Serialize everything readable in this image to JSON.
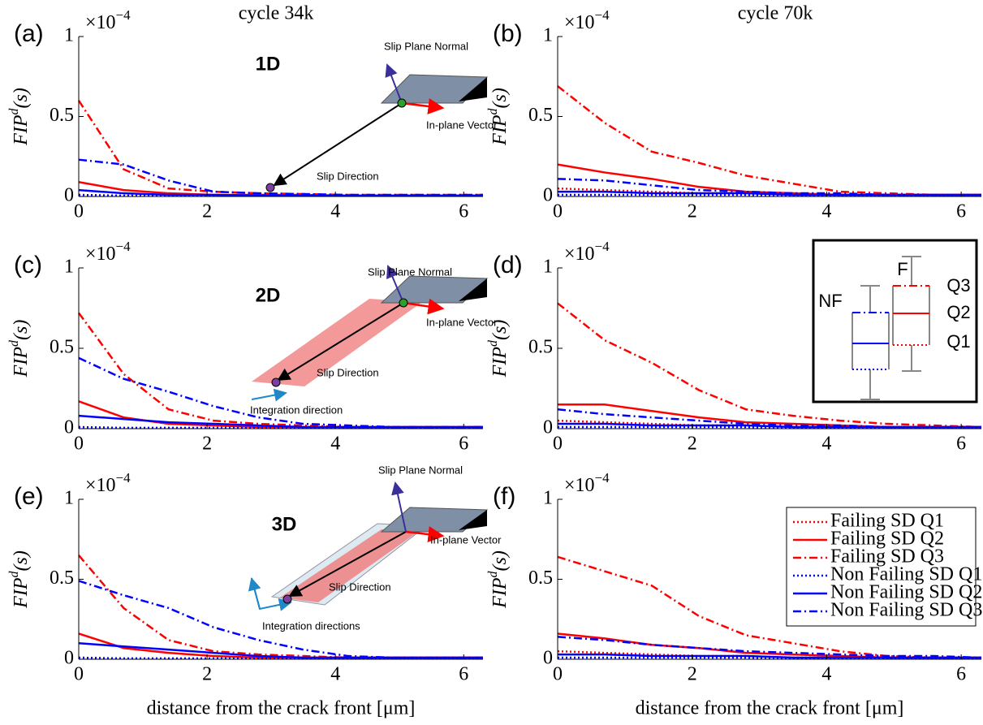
{
  "chart_data": [
    {
      "type": "line",
      "panel_label": "(a)",
      "title": "cycle 34k",
      "inset_title": "1D",
      "annotations": [
        "Slip Plane Normal",
        "In-plane Vector",
        "Slip Direction"
      ],
      "ylabel": [
        "FIP",
        "d",
        "(s)"
      ],
      "y_multiplier": [
        "×10",
        "−4"
      ],
      "x": [
        0,
        0.7,
        1.4,
        2.1,
        2.8,
        3.5,
        4.2,
        4.9,
        5.6,
        6.3
      ],
      "xlim": [
        0,
        6.3
      ],
      "xticks": [
        0,
        2,
        4,
        6
      ],
      "ylim": [
        0,
        1
      ],
      "yticks": [
        0,
        0.5,
        1
      ],
      "series": [
        {
          "color": "#ff0000",
          "dash": "dotted",
          "values": [
            0.01,
            0.005,
            0.005,
            0.005,
            0.005,
            0.005,
            0.005,
            0.005,
            0.005,
            0.005
          ]
        },
        {
          "color": "#ff0000",
          "dash": "solid",
          "values": [
            0.09,
            0.04,
            0.02,
            0.01,
            0.01,
            0.01,
            0.005,
            0.005,
            0.005,
            0.005
          ]
        },
        {
          "color": "#ff0000",
          "dash": "dashdot",
          "values": [
            0.6,
            0.17,
            0.05,
            0.03,
            0.02,
            0.015,
            0.01,
            0.01,
            0.01,
            0.01
          ]
        },
        {
          "color": "#0000ff",
          "dash": "dotted",
          "values": [
            0.01,
            0.005,
            0.005,
            0.005,
            0.005,
            0.005,
            0.005,
            0.005,
            0.005,
            0.005
          ]
        },
        {
          "color": "#0000ff",
          "dash": "solid",
          "values": [
            0.04,
            0.02,
            0.01,
            0.01,
            0.005,
            0.005,
            0.005,
            0.005,
            0.005,
            0.005
          ]
        },
        {
          "color": "#0000ff",
          "dash": "dashdot",
          "values": [
            0.23,
            0.2,
            0.1,
            0.03,
            0.02,
            0.015,
            0.01,
            0.01,
            0.01,
            0.01
          ]
        }
      ]
    },
    {
      "type": "line",
      "panel_label": "(b)",
      "title": "cycle 70k",
      "ylabel": [
        "FIP",
        "d",
        "(s)"
      ],
      "y_multiplier": [
        "×10",
        "−4"
      ],
      "x": [
        0,
        0.7,
        1.4,
        2.1,
        2.8,
        3.5,
        4.2,
        4.9,
        5.6,
        6.3
      ],
      "xlim": [
        0,
        6.3
      ],
      "xticks": [
        0,
        2,
        4,
        6
      ],
      "ylim": [
        0,
        1
      ],
      "yticks": [
        0,
        0.5,
        1
      ],
      "series": [
        {
          "color": "#ff0000",
          "dash": "dotted",
          "values": [
            0.05,
            0.04,
            0.03,
            0.02,
            0.02,
            0.01,
            0.01,
            0.01,
            0.01,
            0.01
          ]
        },
        {
          "color": "#ff0000",
          "dash": "solid",
          "values": [
            0.2,
            0.15,
            0.11,
            0.06,
            0.03,
            0.02,
            0.01,
            0.01,
            0.01,
            0.01
          ]
        },
        {
          "color": "#ff0000",
          "dash": "dashdot",
          "values": [
            0.69,
            0.46,
            0.28,
            0.21,
            0.13,
            0.08,
            0.03,
            0.02,
            0.01,
            0.01
          ]
        },
        {
          "color": "#0000ff",
          "dash": "dotted",
          "values": [
            0.01,
            0.01,
            0.01,
            0.01,
            0.01,
            0.005,
            0.005,
            0.005,
            0.005,
            0.005
          ]
        },
        {
          "color": "#0000ff",
          "dash": "solid",
          "values": [
            0.03,
            0.03,
            0.02,
            0.02,
            0.02,
            0.01,
            0.01,
            0.01,
            0.01,
            0.01
          ]
        },
        {
          "color": "#0000ff",
          "dash": "dashdot",
          "values": [
            0.11,
            0.1,
            0.07,
            0.04,
            0.03,
            0.02,
            0.02,
            0.01,
            0.01,
            0.01
          ]
        }
      ]
    },
    {
      "type": "line",
      "panel_label": "(c)",
      "inset_title": "2D",
      "annotations": [
        "Slip Plane Normal",
        "In-plane Vector",
        "Slip Direction",
        "Integration direction"
      ],
      "ylabel": [
        "FIP",
        "d",
        "(s)"
      ],
      "y_multiplier": [
        "×10",
        "−4"
      ],
      "x": [
        0,
        0.7,
        1.4,
        2.1,
        2.8,
        3.5,
        4.2,
        4.9,
        5.6,
        6.3
      ],
      "xlim": [
        0,
        6.3
      ],
      "xticks": [
        0,
        2,
        4,
        6
      ],
      "ylim": [
        0,
        1
      ],
      "yticks": [
        0,
        0.5,
        1
      ],
      "series": [
        {
          "color": "#ff0000",
          "dash": "dotted",
          "values": [
            0.01,
            0.005,
            0.005,
            0.005,
            0.005,
            0.005,
            0.005,
            0.005,
            0.005,
            0.005
          ]
        },
        {
          "color": "#ff0000",
          "dash": "solid",
          "values": [
            0.17,
            0.07,
            0.03,
            0.02,
            0.01,
            0.01,
            0.01,
            0.01,
            0.01,
            0.01
          ]
        },
        {
          "color": "#ff0000",
          "dash": "dashdot",
          "values": [
            0.72,
            0.34,
            0.12,
            0.05,
            0.03,
            0.02,
            0.01,
            0.01,
            0.01,
            0.01
          ]
        },
        {
          "color": "#0000ff",
          "dash": "dotted",
          "values": [
            0.01,
            0.005,
            0.005,
            0.005,
            0.005,
            0.005,
            0.005,
            0.005,
            0.005,
            0.005
          ]
        },
        {
          "color": "#0000ff",
          "dash": "solid",
          "values": [
            0.08,
            0.06,
            0.04,
            0.03,
            0.02,
            0.01,
            0.01,
            0.01,
            0.01,
            0.01
          ]
        },
        {
          "color": "#0000ff",
          "dash": "dashdot",
          "values": [
            0.44,
            0.31,
            0.23,
            0.14,
            0.07,
            0.03,
            0.02,
            0.01,
            0.01,
            0.01
          ]
        }
      ]
    },
    {
      "type": "line",
      "panel_label": "(d)",
      "box_legend_labels": [
        "NF",
        "F",
        "Q3",
        "Q2",
        "Q1"
      ],
      "ylabel": [
        "FIP",
        "d",
        "(s)"
      ],
      "y_multiplier": [
        "×10",
        "−4"
      ],
      "x": [
        0,
        0.7,
        1.4,
        2.1,
        2.8,
        3.5,
        4.2,
        4.9,
        5.6,
        6.3
      ],
      "xlim": [
        0,
        6.3
      ],
      "xticks": [
        0,
        2,
        4,
        6
      ],
      "ylim": [
        0,
        1
      ],
      "yticks": [
        0,
        0.5,
        1
      ],
      "series": [
        {
          "color": "#ff0000",
          "dash": "dotted",
          "values": [
            0.05,
            0.04,
            0.03,
            0.02,
            0.02,
            0.01,
            0.01,
            0.01,
            0.01,
            0.01
          ]
        },
        {
          "color": "#ff0000",
          "dash": "solid",
          "values": [
            0.15,
            0.15,
            0.11,
            0.07,
            0.04,
            0.03,
            0.02,
            0.01,
            0.01,
            0.01
          ]
        },
        {
          "color": "#ff0000",
          "dash": "dashdot",
          "values": [
            0.78,
            0.55,
            0.41,
            0.24,
            0.12,
            0.08,
            0.05,
            0.03,
            0.02,
            0.01
          ]
        },
        {
          "color": "#0000ff",
          "dash": "dotted",
          "values": [
            0.01,
            0.01,
            0.01,
            0.01,
            0.01,
            0.005,
            0.005,
            0.005,
            0.005,
            0.005
          ]
        },
        {
          "color": "#0000ff",
          "dash": "solid",
          "values": [
            0.03,
            0.03,
            0.02,
            0.02,
            0.02,
            0.01,
            0.01,
            0.01,
            0.01,
            0.01
          ]
        },
        {
          "color": "#0000ff",
          "dash": "dashdot",
          "values": [
            0.12,
            0.09,
            0.07,
            0.05,
            0.03,
            0.02,
            0.02,
            0.01,
            0.01,
            0.01
          ]
        }
      ]
    },
    {
      "type": "line",
      "panel_label": "(e)",
      "inset_title": "3D",
      "annotations": [
        "Slip Plane Normal",
        "In-plane Vector",
        "Slip Direction",
        "Integration directions"
      ],
      "ylabel": [
        "FIP",
        "d",
        "(s)"
      ],
      "y_multiplier": [
        "×10",
        "−4"
      ],
      "xlabel": "distance from the crack front [μm]",
      "x": [
        0,
        0.7,
        1.4,
        2.1,
        2.8,
        3.5,
        4.2,
        4.9,
        5.6,
        6.3
      ],
      "xlim": [
        0,
        6.3
      ],
      "xticks": [
        0,
        2,
        4,
        6
      ],
      "ylim": [
        0,
        1
      ],
      "yticks": [
        0,
        0.5,
        1
      ],
      "series": [
        {
          "color": "#ff0000",
          "dash": "dotted",
          "values": [
            0.01,
            0.005,
            0.005,
            0.005,
            0.005,
            0.005,
            0.005,
            0.005,
            0.005,
            0.005
          ]
        },
        {
          "color": "#ff0000",
          "dash": "solid",
          "values": [
            0.16,
            0.07,
            0.04,
            0.02,
            0.01,
            0.01,
            0.01,
            0.01,
            0.01,
            0.01
          ]
        },
        {
          "color": "#ff0000",
          "dash": "dashdot",
          "values": [
            0.65,
            0.32,
            0.12,
            0.05,
            0.03,
            0.02,
            0.01,
            0.01,
            0.01,
            0.01
          ]
        },
        {
          "color": "#0000ff",
          "dash": "dotted",
          "values": [
            0.01,
            0.005,
            0.005,
            0.005,
            0.005,
            0.005,
            0.005,
            0.005,
            0.005,
            0.005
          ]
        },
        {
          "color": "#0000ff",
          "dash": "solid",
          "values": [
            0.1,
            0.08,
            0.06,
            0.04,
            0.02,
            0.01,
            0.01,
            0.01,
            0.01,
            0.01
          ]
        },
        {
          "color": "#0000ff",
          "dash": "dashdot",
          "values": [
            0.49,
            0.4,
            0.32,
            0.2,
            0.12,
            0.06,
            0.02,
            0.01,
            0.01,
            0.01
          ]
        }
      ]
    },
    {
      "type": "line",
      "panel_label": "(f)",
      "legend": "right",
      "ylabel": [
        "FIP",
        "d",
        "(s)"
      ],
      "y_multiplier": [
        "×10",
        "−4"
      ],
      "xlabel": "distance from the crack front [μm]",
      "x": [
        0,
        0.7,
        1.4,
        2.1,
        2.8,
        3.5,
        4.2,
        4.9,
        5.6,
        6.3
      ],
      "xlim": [
        0,
        6.3
      ],
      "xticks": [
        0,
        2,
        4,
        6
      ],
      "ylim": [
        0,
        1
      ],
      "yticks": [
        0,
        0.5,
        1
      ],
      "series": [
        {
          "name": "Failing SD Q1",
          "color": "#ff0000",
          "dash": "dotted",
          "values": [
            0.05,
            0.04,
            0.03,
            0.02,
            0.02,
            0.01,
            0.01,
            0.01,
            0.01,
            0.01
          ]
        },
        {
          "name": "Failing SD Q2",
          "color": "#ff0000",
          "dash": "solid",
          "values": [
            0.16,
            0.13,
            0.09,
            0.07,
            0.04,
            0.03,
            0.02,
            0.01,
            0.01,
            0.01
          ]
        },
        {
          "name": "Failing SD Q3",
          "color": "#ff0000",
          "dash": "dashdot",
          "values": [
            0.64,
            0.55,
            0.46,
            0.27,
            0.15,
            0.1,
            0.05,
            0.02,
            0.01,
            0.01
          ]
        },
        {
          "name": "Non Failing SD Q1",
          "color": "#0000ff",
          "dash": "dotted",
          "values": [
            0.01,
            0.01,
            0.01,
            0.01,
            0.01,
            0.005,
            0.005,
            0.005,
            0.005,
            0.005
          ]
        },
        {
          "name": "Non Failing SD Q2",
          "color": "#0000ff",
          "dash": "solid",
          "values": [
            0.03,
            0.03,
            0.02,
            0.02,
            0.02,
            0.01,
            0.01,
            0.01,
            0.01,
            0.01
          ]
        },
        {
          "name": "Non Failing SD Q3",
          "color": "#0000ff",
          "dash": "dashdot",
          "values": [
            0.14,
            0.12,
            0.09,
            0.07,
            0.05,
            0.04,
            0.03,
            0.02,
            0.02,
            0.01
          ]
        }
      ]
    }
  ]
}
